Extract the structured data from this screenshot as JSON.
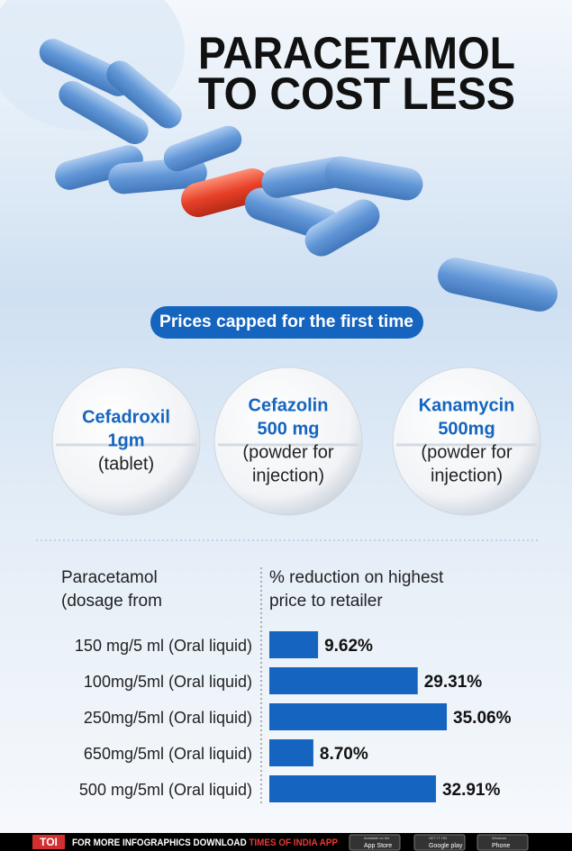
{
  "header": {
    "title": [
      "PARACETAMOL",
      "TO COST LESS"
    ]
  },
  "banner": "Prices capped for the first time",
  "drugs": [
    {
      "name": [
        "Cefadroxil",
        "1gm"
      ],
      "form": [
        "(tablet)"
      ]
    },
    {
      "name": [
        "Cefazolin",
        "500 mg"
      ],
      "form": [
        "(powder for",
        "injection)"
      ]
    },
    {
      "name": [
        "Kanamycin",
        "500mg"
      ],
      "form": [
        "(powder for",
        "injection)"
      ]
    }
  ],
  "chart_data": {
    "type": "bar",
    "orientation": "horizontal",
    "category_header": [
      "Paracetamol",
      "(dosage from"
    ],
    "value_header": [
      "% reduction on highest",
      "price to retailer"
    ],
    "categories": [
      "150 mg/5 ml (Oral liquid)",
      "100mg/5ml (Oral liquid)",
      "250mg/5ml (Oral liquid)",
      "650mg/5ml (Oral liquid)",
      "500 mg/5ml (Oral liquid)"
    ],
    "values": [
      9.62,
      29.31,
      35.06,
      8.7,
      32.91
    ],
    "value_labels": [
      "9.62%",
      "29.31%",
      "35.06%",
      "8.70%",
      "32.91%"
    ],
    "color": "#1565c0"
  },
  "footer": {
    "brand": "TOI",
    "text": "FOR MORE  INFOGRAPHICS DOWNLOAD",
    "app": "TIMES OF INDIA  APP",
    "badges": [
      {
        "small": "Available on the",
        "big": "App Store"
      },
      {
        "small": "GET IT ON",
        "big": "Google play"
      },
      {
        "small": "Windows",
        "big": "Phone"
      }
    ]
  }
}
